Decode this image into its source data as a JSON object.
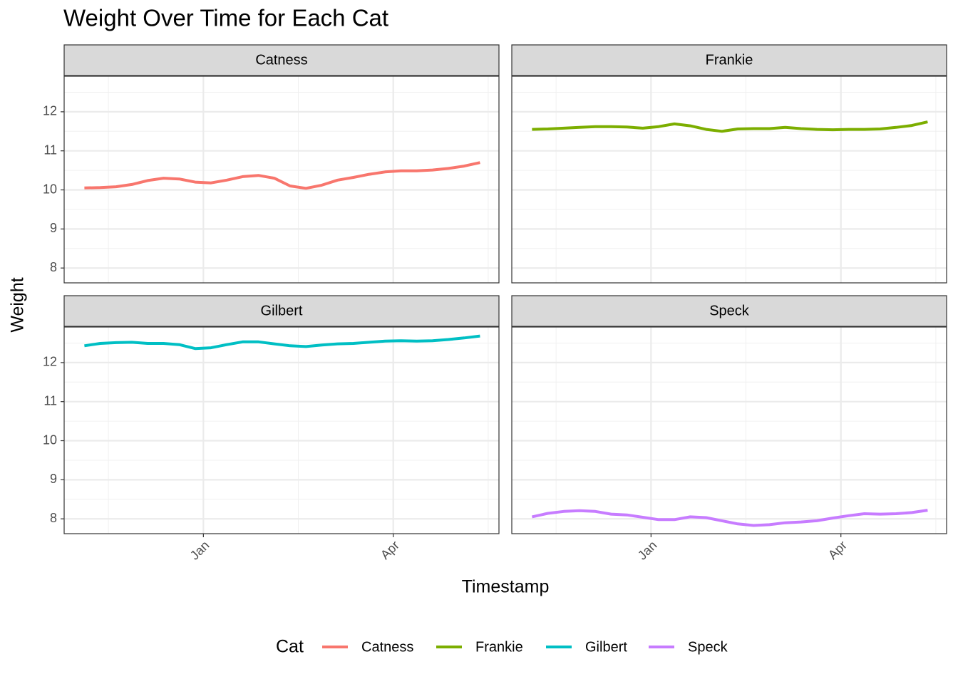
{
  "chart_data": {
    "type": "line",
    "title": "Weight Over Time for Each Cat",
    "x_label": "Timestamp",
    "y_label": "Weight",
    "legend_title": "Cat",
    "legend_position": "bottom",
    "grid": true,
    "x": [
      -1.88,
      -1.63,
      -1.38,
      -1.13,
      -0.88,
      -0.63,
      -0.38,
      -0.13,
      0.12,
      0.37,
      0.62,
      0.87,
      1.12,
      1.37,
      1.62,
      1.87,
      2.12,
      2.37,
      2.62,
      2.87,
      3.12,
      3.37,
      3.62,
      3.87,
      4.12,
      4.37
    ],
    "xlim": [
      -2.2,
      4.67
    ],
    "xticks": [
      {
        "value": 0,
        "label": "Jan"
      },
      {
        "value": 3,
        "label": "Apr"
      }
    ],
    "x_minor_ticks": [
      -1.5,
      1.5,
      4.5
    ],
    "ylim": [
      7.62,
      12.91
    ],
    "yticks": [
      8,
      9,
      10,
      11,
      12
    ],
    "y_minor_ticks": [
      7.5,
      8.5,
      9.5,
      10.5,
      11.5,
      12.5
    ],
    "series": [
      {
        "name": "Catness",
        "color": "#F8766D",
        "values": [
          10.05,
          10.06,
          10.08,
          10.14,
          10.24,
          10.3,
          10.28,
          10.2,
          10.18,
          10.25,
          10.34,
          10.37,
          10.3,
          10.1,
          10.04,
          10.12,
          10.25,
          10.32,
          10.4,
          10.46,
          10.49,
          10.49,
          10.51,
          10.55,
          10.61,
          10.7
        ]
      },
      {
        "name": "Frankie",
        "color": "#7CAE00",
        "values": [
          11.55,
          11.56,
          11.58,
          11.6,
          11.62,
          11.62,
          11.61,
          11.58,
          11.62,
          11.69,
          11.64,
          11.55,
          11.5,
          11.56,
          11.57,
          11.57,
          11.6,
          11.57,
          11.55,
          11.54,
          11.55,
          11.55,
          11.56,
          11.6,
          11.65,
          11.74
        ]
      },
      {
        "name": "Gilbert",
        "color": "#00BFC4",
        "values": [
          12.43,
          12.49,
          12.51,
          12.52,
          12.49,
          12.49,
          12.46,
          12.36,
          12.38,
          12.46,
          12.53,
          12.53,
          12.48,
          12.43,
          12.41,
          12.45,
          12.48,
          12.49,
          12.52,
          12.55,
          12.56,
          12.55,
          12.56,
          12.59,
          12.63,
          12.68
        ]
      },
      {
        "name": "Speck",
        "color": "#C77CFF",
        "values": [
          8.05,
          8.14,
          8.19,
          8.21,
          8.19,
          8.12,
          8.1,
          8.04,
          7.98,
          7.98,
          8.05,
          8.03,
          7.95,
          7.87,
          7.83,
          7.85,
          7.9,
          7.92,
          7.95,
          8.02,
          8.08,
          8.13,
          8.12,
          8.13,
          8.16,
          8.22
        ]
      }
    ]
  }
}
